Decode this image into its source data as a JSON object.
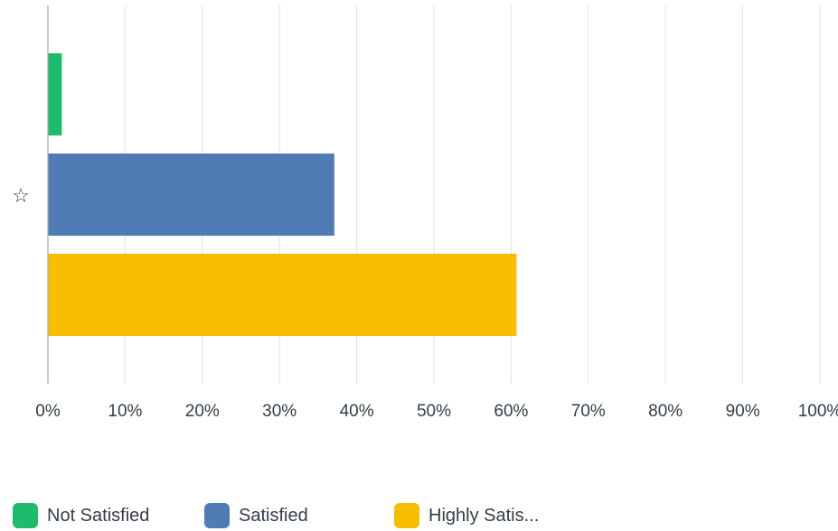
{
  "chart_data": {
    "type": "bar",
    "orientation": "horizontal",
    "categories": [
      "☆"
    ],
    "series": [
      {
        "name": "Not Satisfied",
        "values": [
          1.8
        ],
        "color": "#1ebb6e"
      },
      {
        "name": "Satisfied",
        "values": [
          37.1
        ],
        "color": "#507cb6"
      },
      {
        "name": "Highly Satis...",
        "values": [
          60.7
        ],
        "color": "#f7be00"
      }
    ],
    "x_ticks": [
      "0%",
      "10%",
      "20%",
      "30%",
      "40%",
      "50%",
      "60%",
      "70%",
      "80%",
      "90%",
      "100%"
    ],
    "xlim": [
      0,
      100
    ],
    "grid": true,
    "legend_position": "bottom",
    "title": "",
    "xlabel": "",
    "ylabel": ""
  },
  "colors": {
    "grid": "#e4e4e4",
    "axis": "#a9a9a9",
    "text": "#333e48"
  },
  "legend": {
    "items": [
      {
        "label": "Not Satisfied",
        "color": "#1ebb6e"
      },
      {
        "label": "Satisfied",
        "color": "#507cb6"
      },
      {
        "label": "Highly Satis...",
        "color": "#f7be00"
      }
    ]
  }
}
